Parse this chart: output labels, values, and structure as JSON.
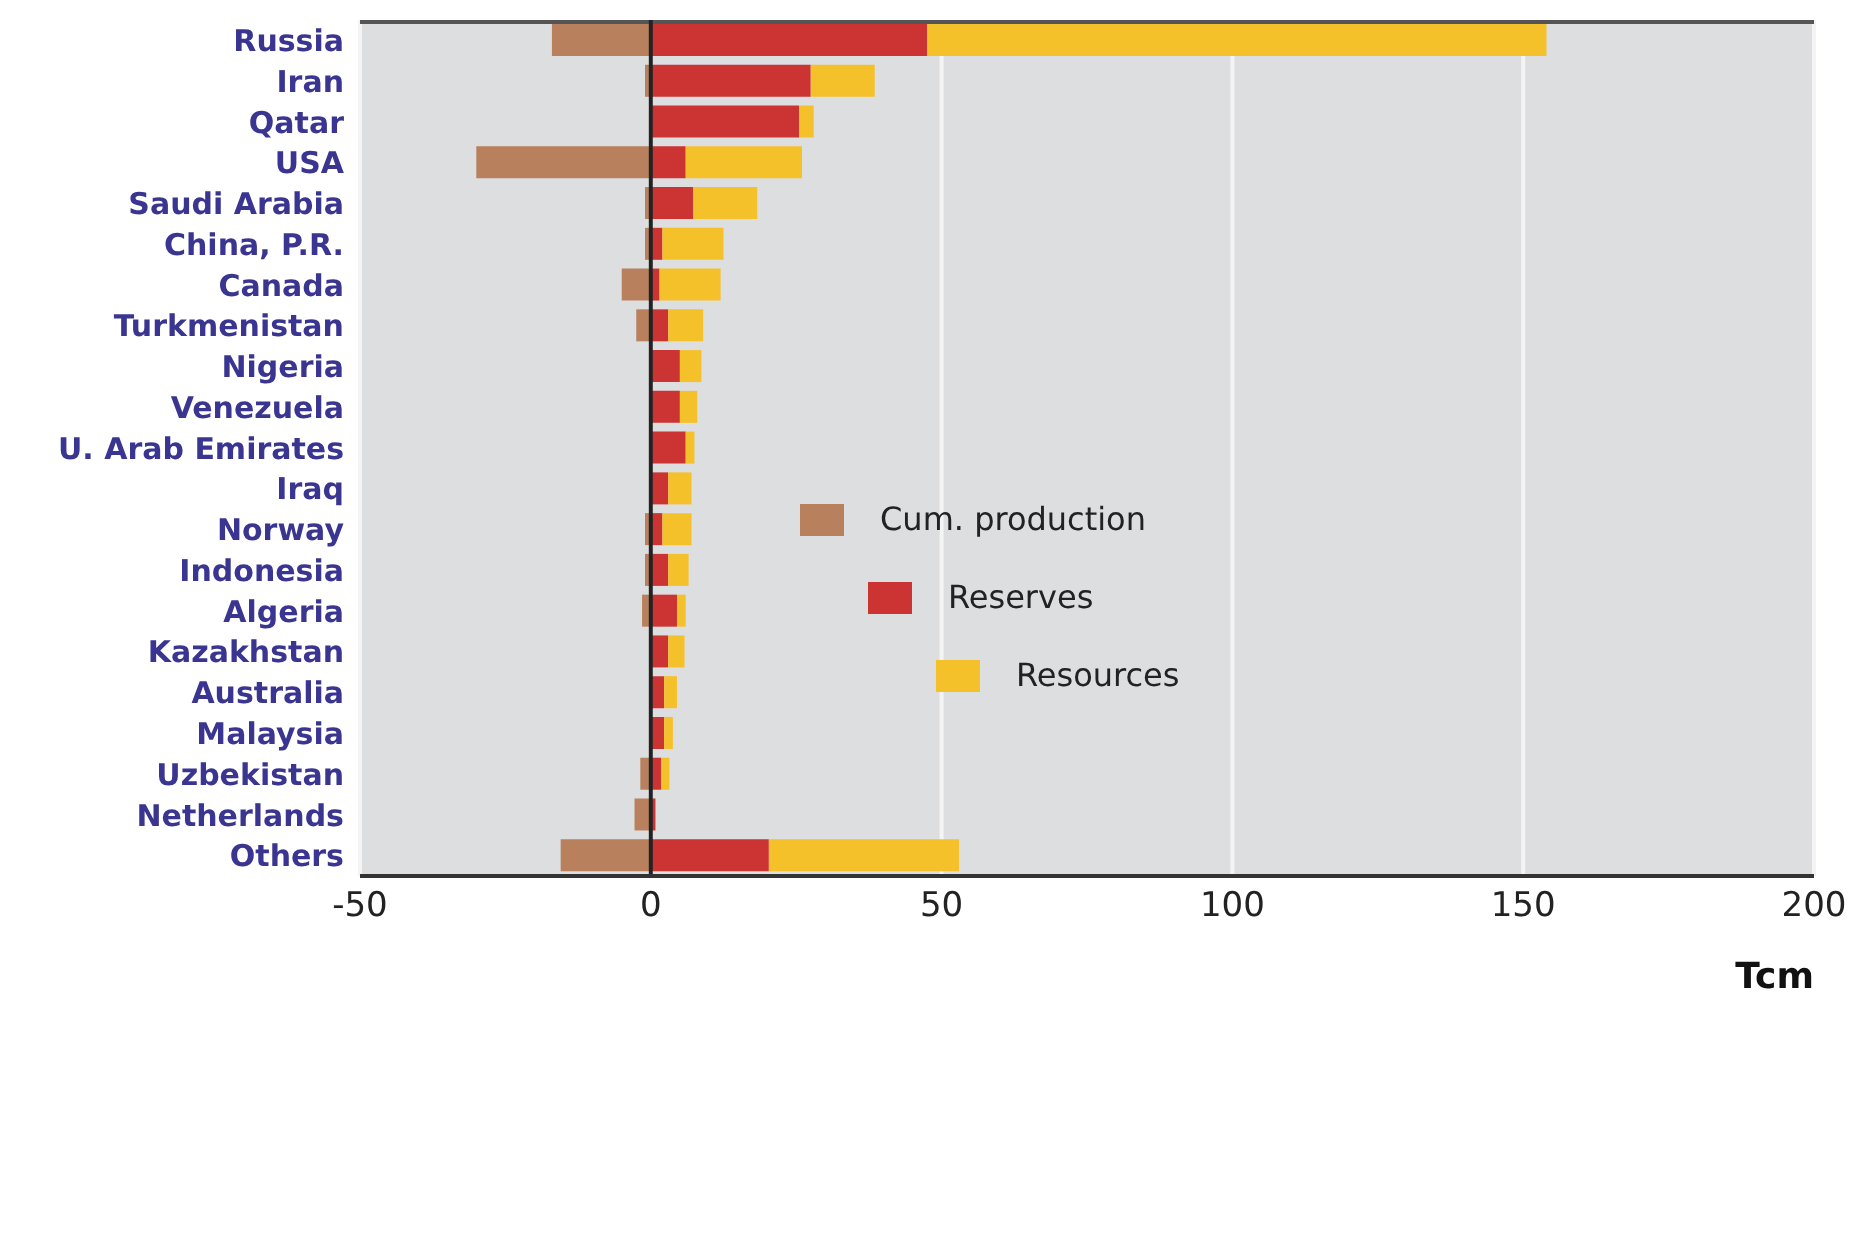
{
  "chart_data": {
    "type": "bar",
    "orientation": "horizontal",
    "stacked": true,
    "xlabel": "Tcm",
    "categories": [
      "Russia",
      "Iran",
      "Qatar",
      "USA",
      "Saudi Arabia",
      "China, P.R.",
      "Canada",
      "Turkmenistan",
      "Nigeria",
      "Venezuela",
      "U. Arab Emirates",
      "Iraq",
      "Norway",
      "Indonesia",
      "Algeria",
      "Kazakhstan",
      "Australia",
      "Malaysia",
      "Uzbekistan",
      "Netherlands",
      "Others"
    ],
    "series": [
      {
        "name": "Cum. production",
        "color": "#b8805c",
        "values": [
          -17,
          -1,
          null,
          -30,
          -1,
          -1,
          -5,
          -2.5,
          null,
          null,
          null,
          null,
          -1,
          -1,
          -1.5,
          null,
          null,
          null,
          -1.8,
          -2.8,
          -15.5
        ]
      },
      {
        "name": "Reserves",
        "color": "#cc3333",
        "values": [
          47.5,
          27.5,
          25.5,
          6,
          7.3,
          2,
          1.5,
          3,
          5,
          5,
          6,
          3,
          2,
          3,
          4.5,
          3,
          2.3,
          2.3,
          1.8,
          0.8,
          20.3
        ]
      },
      {
        "name": "Resources",
        "color": "#f5c12a",
        "values": [
          106.5,
          11,
          2.5,
          20,
          11,
          10.5,
          10.5,
          6,
          3.7,
          3,
          1.5,
          4,
          5,
          3.5,
          1.5,
          2.8,
          2.2,
          1.5,
          1.4,
          null,
          32.7
        ]
      }
    ],
    "xlim": [
      -50,
      200
    ],
    "xticks": [
      -50,
      0,
      50,
      100,
      150,
      200
    ],
    "grid": "x",
    "legend": "center",
    "ref_lines": [
      {
        "axis": "x",
        "value": 0,
        "color": "#222222"
      }
    ]
  }
}
